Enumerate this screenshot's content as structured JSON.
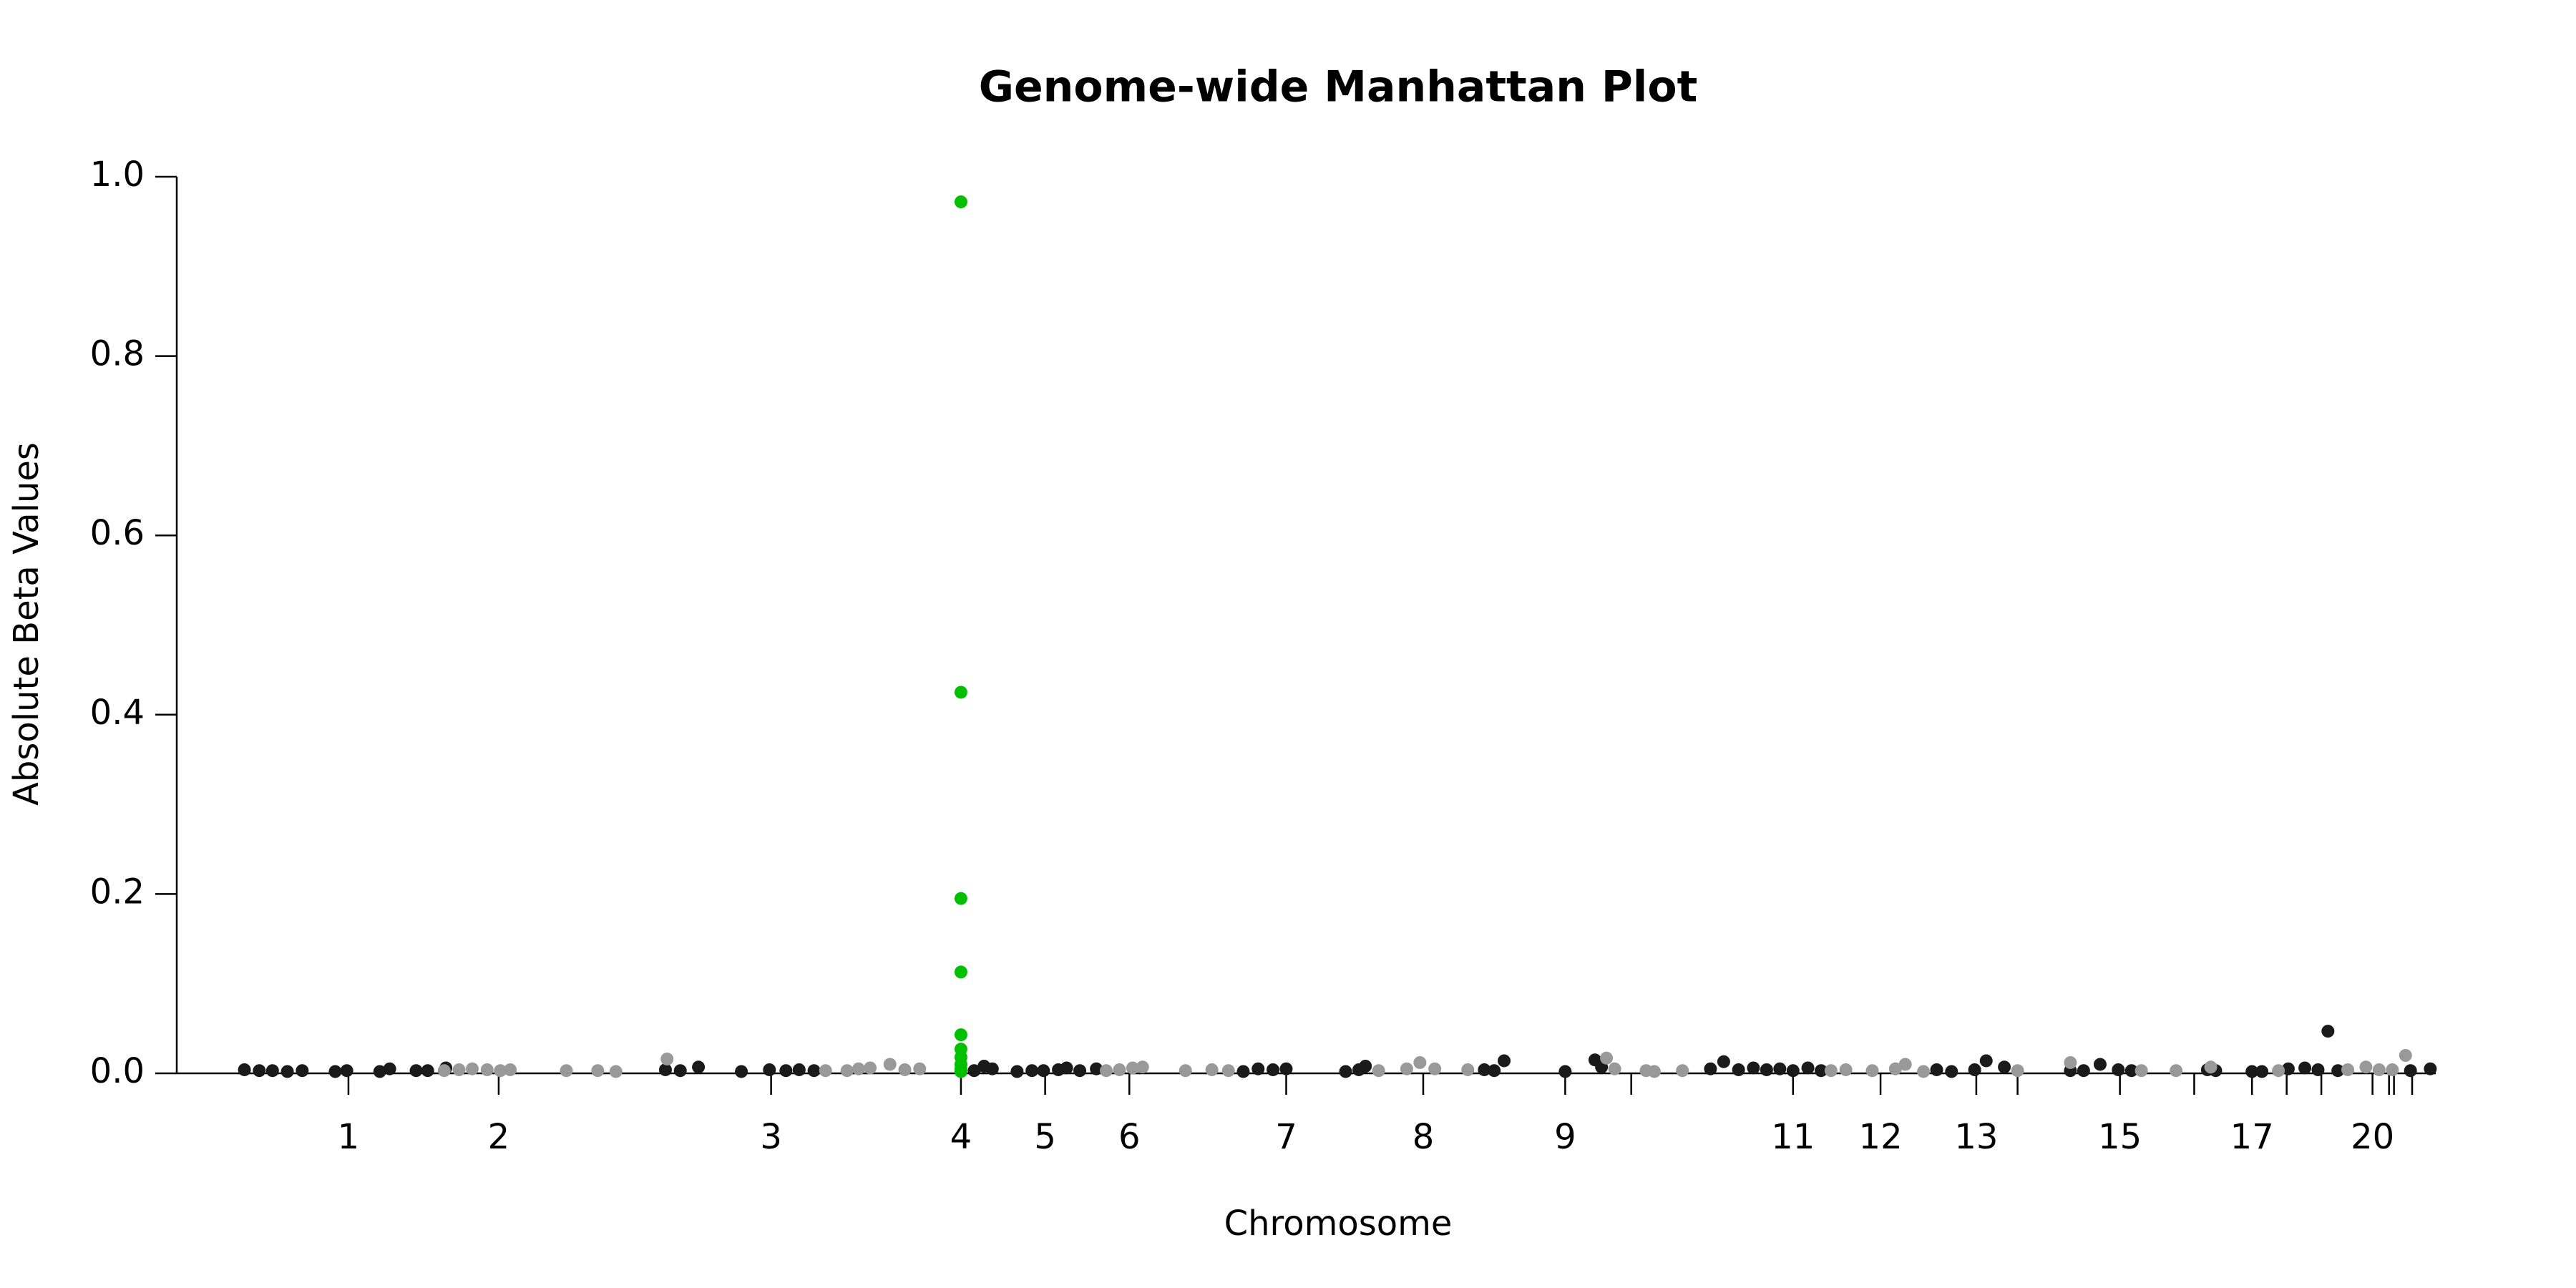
{
  "chart_data": {
    "type": "scatter",
    "title": "Genome-wide Manhattan Plot",
    "x_label": "Chromosome",
    "y_label": "Absolute Beta Values",
    "xlim": [
      0,
      1380
    ],
    "ylim": [
      0,
      1.0
    ],
    "yticks": [
      {
        "value": 0,
        "label": "0.0"
      },
      0.2,
      0.4,
      0.6,
      0.8,
      {
        "value": 1.0,
        "label": "1.0"
      }
    ],
    "xticks": [
      {
        "value": 104,
        "label": "1"
      },
      {
        "value": 195,
        "label": "2"
      },
      {
        "value": 360,
        "label": "3"
      },
      {
        "value": 475,
        "label": "4"
      },
      {
        "value": 526,
        "label": "5"
      },
      {
        "value": 577,
        "label": "6"
      },
      {
        "value": 672,
        "label": "7"
      },
      {
        "value": 755,
        "label": "8"
      },
      {
        "value": 841,
        "label": "9"
      },
      {
        "value": 881,
        "label": null
      },
      {
        "value": 979,
        "label": "11"
      },
      {
        "value": 1032,
        "label": "12"
      },
      {
        "value": 1090,
        "label": "13"
      },
      {
        "value": 1115,
        "label": null
      },
      {
        "value": 1177,
        "label": "15"
      },
      {
        "value": 1222,
        "label": null
      },
      {
        "value": 1257,
        "label": "17"
      },
      {
        "value": 1278,
        "label": null
      },
      {
        "value": 1299,
        "label": null
      },
      {
        "value": 1330,
        "label": "20"
      },
      {
        "value": 1340,
        "label": null
      },
      {
        "value": 1343,
        "label": null
      },
      {
        "value": 1354,
        "label": null
      }
    ],
    "series": [
      {
        "color": "#1a1a1a",
        "x": [
          41,
          50,
          58,
          67,
          76,
          96,
          103,
          123,
          129,
          145,
          152,
          163,
          296,
          305,
          316,
          342,
          359,
          369,
          377,
          386,
          483,
          489,
          494,
          509,
          518,
          525,
          534,
          539,
          547,
          557,
          646,
          655,
          664,
          672,
          708,
          716,
          720,
          792,
          798,
          804,
          841,
          859,
          863,
          929,
          937,
          946,
          955,
          963,
          971,
          979,
          988,
          996,
          1066,
          1075,
          1089,
          1096,
          1107,
          1147,
          1155,
          1165,
          1176,
          1184,
          1230,
          1235,
          1257,
          1263,
          1279,
          1289,
          1297,
          1303,
          1309,
          1353,
          1365
        ],
        "values": [
          0.004,
          0.003,
          0.003,
          0.002,
          0.003,
          0.002,
          0.003,
          0.002,
          0.005,
          0.003,
          0.003,
          0.006,
          0.004,
          0.003,
          0.007,
          0.002,
          0.004,
          0.003,
          0.004,
          0.003,
          0.003,
          0.008,
          0.005,
          0.002,
          0.003,
          0.003,
          0.004,
          0.006,
          0.003,
          0.005,
          0.002,
          0.005,
          0.004,
          0.005,
          0.002,
          0.004,
          0.008,
          0.004,
          0.003,
          0.014,
          0.002,
          0.015,
          0.007,
          0.005,
          0.013,
          0.004,
          0.006,
          0.004,
          0.005,
          0.003,
          0.006,
          0.003,
          0.004,
          0.002,
          0.004,
          0.014,
          0.007,
          0.003,
          0.003,
          0.01,
          0.004,
          0.003,
          0.004,
          0.003,
          0.002,
          0.002,
          0.005,
          0.006,
          0.004,
          0.047,
          0.003,
          0.003,
          0.005
        ]
      },
      {
        "color": "#999999",
        "x": [
          162,
          171,
          179,
          188,
          196,
          202,
          236,
          255,
          266,
          297,
          393,
          406,
          413,
          420,
          432,
          441,
          450,
          563,
          571,
          579,
          585,
          611,
          627,
          637,
          728,
          745,
          753,
          762,
          782,
          866,
          871,
          890,
          895,
          912,
          1002,
          1011,
          1027,
          1041,
          1047,
          1058,
          1115,
          1147,
          1190,
          1211,
          1232,
          1273,
          1315,
          1326,
          1334,
          1342,
          1350
        ],
        "values": [
          0.003,
          0.004,
          0.005,
          0.004,
          0.003,
          0.004,
          0.003,
          0.003,
          0.002,
          0.016,
          0.003,
          0.003,
          0.005,
          0.006,
          0.01,
          0.004,
          0.005,
          0.003,
          0.004,
          0.006,
          0.007,
          0.003,
          0.004,
          0.003,
          0.003,
          0.005,
          0.012,
          0.005,
          0.004,
          0.017,
          0.005,
          0.003,
          0.002,
          0.003,
          0.003,
          0.004,
          0.003,
          0.005,
          0.01,
          0.002,
          0.003,
          0.012,
          0.003,
          0.003,
          0.007,
          0.003,
          0.004,
          0.007,
          0.004,
          0.004,
          0.02
        ]
      },
      {
        "color": "#00c000",
        "x": [
          475,
          475,
          475,
          475,
          475,
          475,
          475,
          475,
          475,
          475
        ],
        "values": [
          0.972,
          0.425,
          0.195,
          0.113,
          0.043,
          0.027,
          0.018,
          0.01,
          0.005,
          0.002
        ]
      }
    ]
  }
}
